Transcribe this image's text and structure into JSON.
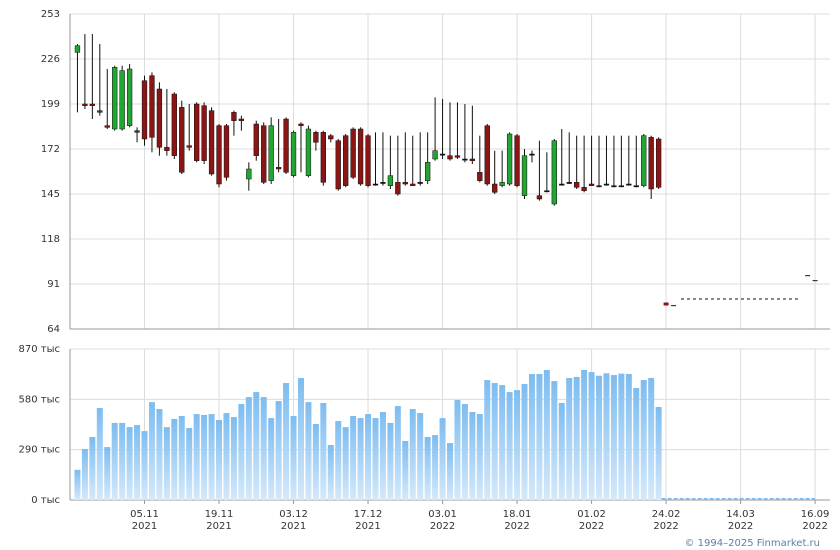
{
  "chart_data": [
    {
      "type": "candlestick",
      "x": [
        0,
        1,
        2,
        3,
        4,
        5,
        6,
        7,
        8,
        9,
        10,
        11,
        12,
        13,
        14,
        15,
        16,
        17,
        18,
        19,
        20,
        21,
        22,
        23,
        24,
        25,
        26,
        27,
        28,
        29,
        30,
        31,
        32,
        33,
        34,
        35,
        36,
        37,
        38,
        39,
        40,
        41,
        42,
        43,
        44,
        45,
        46,
        47,
        48,
        49,
        50,
        51,
        52,
        53,
        54,
        55,
        56,
        57,
        58,
        59,
        60,
        61,
        62,
        63,
        64,
        65,
        66,
        67,
        68,
        69,
        70,
        71,
        72,
        73,
        74,
        75,
        76,
        77,
        78
      ],
      "open": [
        230,
        199,
        199,
        195,
        186,
        184,
        184,
        186,
        183,
        213,
        216,
        208,
        173,
        205,
        197,
        174,
        199,
        198,
        195,
        186,
        186,
        194,
        190,
        154,
        187,
        186,
        153,
        161,
        190,
        156,
        187,
        156,
        182,
        182,
        180,
        177,
        180,
        184,
        184,
        180,
        151,
        152,
        150,
        152,
        152,
        151,
        152,
        153,
        166,
        169,
        168,
        168,
        166,
        166,
        158,
        186,
        151,
        150,
        151,
        180,
        144,
        169,
        144,
        147,
        139,
        151,
        152,
        152,
        149,
        151,
        150,
        151,
        150,
        150,
        151,
        150,
        150,
        179,
        178
      ],
      "high": [
        235,
        241,
        241,
        235,
        220,
        222,
        222,
        223,
        185,
        216,
        218,
        212,
        208,
        206,
        201,
        199,
        200,
        200,
        197,
        187,
        187,
        195,
        192,
        164,
        189,
        188,
        191,
        190,
        191,
        183,
        188,
        186,
        183,
        183,
        181,
        178,
        181,
        185,
        185,
        181,
        182,
        182,
        180,
        180,
        182,
        180,
        182,
        182,
        203,
        202,
        200,
        200,
        199,
        198,
        180,
        187,
        171,
        171,
        182,
        181,
        172,
        171,
        177,
        170,
        178,
        184,
        182,
        180,
        180,
        180,
        180,
        180,
        180,
        180,
        180,
        180,
        181,
        180,
        179
      ],
      "low": [
        194,
        196,
        190,
        192,
        184,
        183,
        183,
        185,
        176,
        174,
        170,
        168,
        168,
        166,
        157,
        171,
        164,
        163,
        156,
        149,
        153,
        180,
        183,
        147,
        165,
        151,
        151,
        158,
        157,
        155,
        158,
        155,
        171,
        150,
        176,
        147,
        149,
        154,
        150,
        149,
        150,
        150,
        148,
        144,
        150,
        150,
        150,
        151,
        165,
        166,
        165,
        166,
        164,
        163,
        152,
        150,
        145,
        149,
        150,
        149,
        142,
        164,
        141,
        146,
        138,
        150,
        151,
        148,
        146,
        150,
        149,
        150,
        149,
        149,
        150,
        149,
        149,
        142,
        148
      ],
      "close": [
        234,
        198,
        198,
        194,
        185,
        221,
        219,
        220,
        182,
        178,
        179,
        173,
        171,
        168,
        158,
        173,
        165,
        165,
        157,
        151,
        155,
        189,
        189,
        160,
        168,
        152,
        186,
        160,
        158,
        182,
        186,
        184,
        176,
        152,
        178,
        148,
        150,
        155,
        151,
        150,
        151,
        152,
        156,
        145,
        151,
        150,
        152,
        164,
        171,
        169,
        166,
        167,
        166,
        165,
        153,
        151,
        146,
        152,
        181,
        150,
        168,
        169,
        142,
        147,
        177,
        151,
        152,
        149,
        147,
        150,
        150,
        151,
        150,
        150,
        151,
        150,
        180,
        148,
        149
      ],
      "up_color": "#22a532",
      "down_color": "#8b1414",
      "forecast_marks": {
        "x": [
          79,
          80,
          98,
          99
        ],
        "y": [
          79,
          78,
          96,
          93
        ]
      },
      "forecast_line": {
        "x": [
          81,
          97
        ],
        "y": [
          82,
          82
        ]
      },
      "xlim": [
        -1,
        101
      ],
      "xticks": [
        {
          "value": 9,
          "label": "05.11\n2021"
        },
        {
          "value": 19,
          "label": "19.11\n2021"
        },
        {
          "value": 29,
          "label": "03.12\n2021"
        },
        {
          "value": 39,
          "label": "17.12\n2021"
        },
        {
          "value": 49,
          "label": "03.01\n2022"
        },
        {
          "value": 59,
          "label": "18.01\n2022"
        },
        {
          "value": 69,
          "label": "01.02\n2022"
        },
        {
          "value": 79,
          "label": "24.02\n2022"
        },
        {
          "value": 89,
          "label": "14.03\n2022"
        },
        {
          "value": 99,
          "label": "16.09\n2022"
        }
      ],
      "ylim": [
        64,
        253
      ],
      "yticks": [
        64,
        91,
        118,
        145,
        172,
        199,
        226,
        253
      ],
      "grid": true
    },
    {
      "type": "bar",
      "x": [
        0,
        1,
        2,
        3,
        4,
        5,
        6,
        7,
        8,
        9,
        10,
        11,
        12,
        13,
        14,
        15,
        16,
        17,
        18,
        19,
        20,
        21,
        22,
        23,
        24,
        25,
        26,
        27,
        28,
        29,
        30,
        31,
        32,
        33,
        34,
        35,
        36,
        37,
        38,
        39,
        40,
        41,
        42,
        43,
        44,
        45,
        46,
        47,
        48,
        49,
        50,
        51,
        52,
        53,
        54,
        55,
        56,
        57,
        58,
        59,
        60,
        61,
        62,
        63,
        64,
        65,
        66,
        67,
        68,
        69,
        70,
        71,
        72,
        73,
        74,
        75,
        76,
        77,
        78
      ],
      "values": [
        174,
        294,
        363,
        530,
        305,
        444,
        444,
        420,
        432,
        397,
        564,
        524,
        420,
        467,
        484,
        415,
        495,
        490,
        495,
        461,
        501,
        478,
        553,
        593,
        622,
        593,
        472,
        570,
        674,
        484,
        703,
        564,
        438,
        559,
        317,
        455,
        420,
        484,
        472,
        495,
        472,
        507,
        444,
        541,
        340,
        524,
        501,
        363,
        374,
        472,
        328,
        576,
        553,
        507,
        495,
        691,
        674,
        662,
        622,
        633,
        668,
        726,
        726,
        749,
        685,
        559,
        703,
        709,
        749,
        737,
        716,
        730,
        720,
        728,
        726,
        645,
        691,
        703,
        536
      ],
      "color": "#7dbcf0",
      "xlim": [
        -1,
        101
      ],
      "ylim": [
        0,
        870
      ],
      "yticks": [
        {
          "value": 0,
          "label": "0 тыс"
        },
        {
          "value": 290,
          "label": "290 тыс"
        },
        {
          "value": 580,
          "label": "580 тыс"
        },
        {
          "value": 870,
          "label": "870 тыс"
        }
      ],
      "grid": true
    }
  ],
  "footer": "© 1994–2025 Finmarket.ru"
}
